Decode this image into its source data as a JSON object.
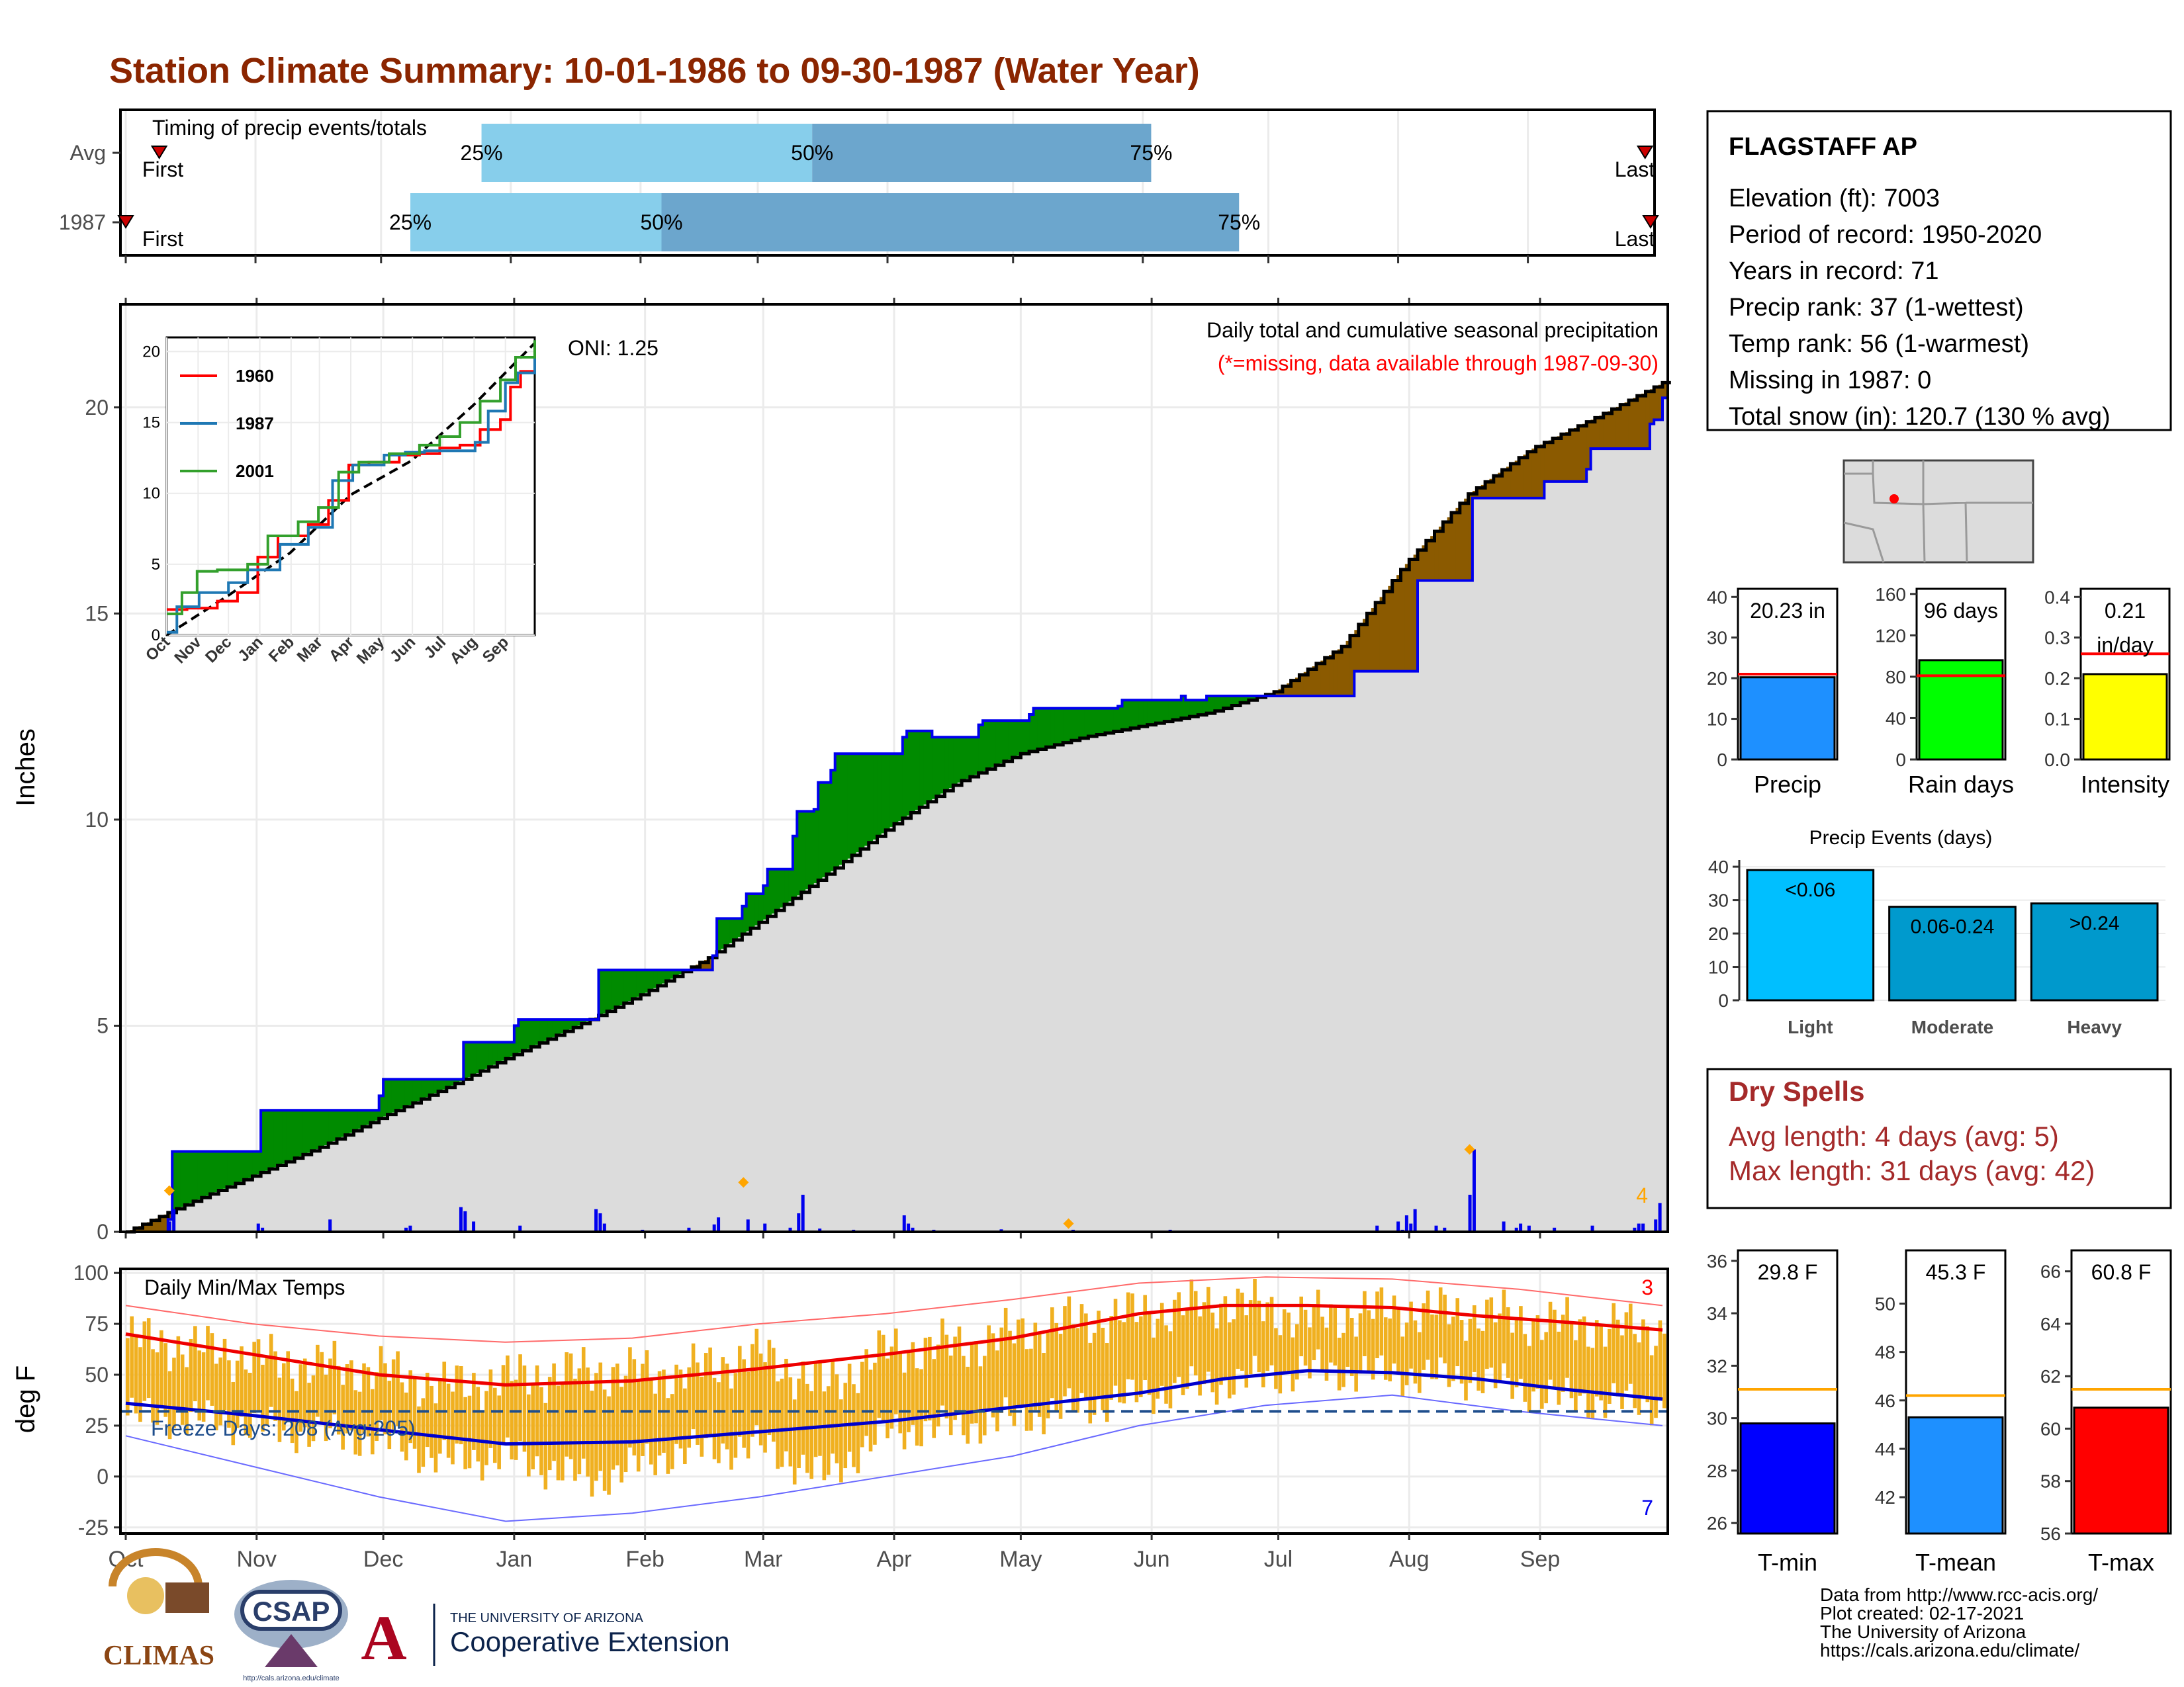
{
  "title": "Station Climate Summary: 10-01-1986 to 09-30-1987 (Water Year)",
  "colors": {
    "title": "#8B2500",
    "light": "#87CEEB",
    "mid": "#6CA6CD",
    "green": "#008B00",
    "brown": "#8B5A00",
    "gray": "#DCDCDC",
    "blue": "#0000EE",
    "orange": "#FFA500",
    "dryred": "#A52A2A"
  },
  "timing": {
    "label": "Timing of precip events/totals",
    "rows": [
      {
        "name": "Avg",
        "first_label": "First",
        "last_label": "Last",
        "first_day": 8,
        "last_day": 363,
        "q25_day": 85,
        "q50_day": 164,
        "q75_day": 245
      },
      {
        "name": "1987",
        "first_label": "First",
        "last_label": "Last",
        "first_day": 0,
        "last_day": 367,
        "q25_day": 68,
        "q50_day": 128,
        "q75_day": 266
      }
    ],
    "q_labels": [
      "25%",
      "50%",
      "75%"
    ]
  },
  "months": [
    "Oct",
    "Nov",
    "Dec",
    "Jan",
    "Feb",
    "Mar",
    "Apr",
    "May",
    "Jun",
    "Jul",
    "Aug",
    "Sep"
  ],
  "chart_data": [
    {
      "id": "main-precip",
      "type": "area",
      "title": "Daily total and cumulative seasonal precipitation",
      "subtitle": "(*=missing, data available through 1987-09-30)",
      "ylabel": "Inches",
      "ylim": [
        0,
        22.5
      ],
      "yticks": [
        0,
        5,
        10,
        15,
        20
      ],
      "oni_label": "ONI: 1.25",
      "corner_label": "4",
      "avg_cumulative": {
        "x": [
          0,
          15,
          30,
          46,
          61,
          77,
          92,
          108,
          123,
          138,
          152,
          167,
          182,
          197,
          212,
          227,
          242,
          257,
          272,
          288,
          303,
          318,
          333,
          349,
          364
        ],
        "y": [
          0,
          0.7,
          1.35,
          2.05,
          2.8,
          3.55,
          4.3,
          5.05,
          5.8,
          6.65,
          7.65,
          8.75,
          9.9,
          10.9,
          11.6,
          12.0,
          12.3,
          12.6,
          13.1,
          14.2,
          16.2,
          17.9,
          19.0,
          19.8,
          20.6
        ]
      },
      "observed_cumulative": {
        "x": [
          0,
          10,
          11,
          31,
          32,
          60,
          61,
          79,
          80,
          92,
          93,
          111,
          112,
          139,
          140,
          146,
          147,
          151,
          152,
          158,
          159,
          163,
          164,
          167,
          168,
          184,
          185,
          190,
          191,
          202,
          203,
          214,
          215,
          235,
          236,
          250,
          251,
          255,
          256,
          276,
          277,
          290,
          291,
          305,
          306,
          318,
          319,
          335,
          336,
          346,
          347,
          361,
          362,
          364
        ],
        "y": [
          0,
          0.3,
          1.95,
          1.95,
          2.95,
          3.3,
          3.7,
          3.7,
          4.6,
          5.0,
          5.15,
          5.15,
          6.35,
          6.7,
          7.6,
          7.9,
          8.2,
          8.4,
          8.8,
          9.6,
          10.2,
          10.25,
          10.9,
          11.2,
          11.6,
          12.0,
          12.15,
          12.15,
          12.0,
          12.3,
          12.4,
          12.55,
          12.7,
          12.75,
          12.9,
          13.0,
          12.9,
          12.9,
          13.0,
          13.0,
          13.0,
          13.0,
          13.6,
          13.6,
          15.8,
          15.8,
          17.8,
          17.8,
          18.2,
          18.5,
          19.0,
          19.6,
          19.7,
          20.23
        ]
      },
      "daily_bars": [
        [
          10,
          0.25
        ],
        [
          11,
          0.55
        ],
        [
          31,
          0.2
        ],
        [
          32,
          0.1
        ],
        [
          48,
          0.3
        ],
        [
          66,
          0.1
        ],
        [
          67,
          0.15
        ],
        [
          79,
          0.6
        ],
        [
          80,
          0.5
        ],
        [
          82,
          0.25
        ],
        [
          93,
          0.15
        ],
        [
          111,
          0.55
        ],
        [
          112,
          0.45
        ],
        [
          113,
          0.2
        ],
        [
          122,
          0.05
        ],
        [
          133,
          0.1
        ],
        [
          139,
          0.18
        ],
        [
          140,
          0.35
        ],
        [
          147,
          0.3
        ],
        [
          151,
          0.2
        ],
        [
          157,
          0.1
        ],
        [
          159,
          0.45
        ],
        [
          160,
          0.9
        ],
        [
          164,
          0.08
        ],
        [
          172,
          0.05
        ],
        [
          184,
          0.4
        ],
        [
          185,
          0.2
        ],
        [
          186,
          0.1
        ],
        [
          191,
          0.05
        ],
        [
          207,
          0.06
        ],
        [
          224,
          0.05
        ],
        [
          247,
          0.05
        ],
        [
          296,
          0.15
        ],
        [
          301,
          0.25
        ],
        [
          302,
          0.05
        ],
        [
          303,
          0.4
        ],
        [
          304,
          0.2
        ],
        [
          305,
          0.55
        ],
        [
          310,
          0.15
        ],
        [
          312,
          0.1
        ],
        [
          318,
          0.9
        ],
        [
          319,
          2.0
        ],
        [
          326,
          0.25
        ],
        [
          329,
          0.1
        ],
        [
          330,
          0.2
        ],
        [
          332,
          0.15
        ],
        [
          338,
          0.1
        ],
        [
          347,
          0.15
        ],
        [
          357,
          0.1
        ],
        [
          358,
          0.2
        ],
        [
          359,
          0.2
        ],
        [
          362,
          0.3
        ],
        [
          363,
          0.7
        ]
      ],
      "record_markers": [
        [
          10,
          1.0
        ],
        [
          146,
          1.2
        ],
        [
          223,
          0.2
        ],
        [
          318,
          2.0
        ]
      ]
    },
    {
      "id": "inset-cumulative",
      "type": "line",
      "yticks": [
        0,
        5,
        10,
        15,
        20
      ],
      "ylim": [
        0,
        21
      ],
      "xticks": [
        "Oct",
        "Nov",
        "Dec",
        "Jan",
        "Feb",
        "Mar",
        "Apr",
        "May",
        "Jun",
        "Jul",
        "Aug",
        "Sep"
      ],
      "series": [
        {
          "name": "1960",
          "color": "#FF0000",
          "x": [
            0,
            20,
            50,
            70,
            90,
            110,
            140,
            160,
            180,
            200,
            230,
            250,
            270,
            290,
            310,
            330,
            340,
            350,
            364
          ],
          "y": [
            1.8,
            1.9,
            2.4,
            3.0,
            5.5,
            7.0,
            7.8,
            9.5,
            12.0,
            12.2,
            12.7,
            12.8,
            13.2,
            13.4,
            14.5,
            15.2,
            17.5,
            18.6,
            18.7
          ]
        },
        {
          "name": "1987",
          "color": "#1F78B4",
          "x": [
            0,
            10,
            31,
            32,
            61,
            80,
            112,
            140,
            164,
            184,
            215,
            236,
            255,
            290,
            305,
            318,
            335,
            347,
            364
          ],
          "y": [
            0.2,
            2.0,
            2.0,
            3.0,
            3.7,
            4.6,
            6.4,
            7.6,
            10.9,
            12.0,
            12.7,
            12.9,
            13.0,
            13.0,
            13.6,
            15.8,
            17.8,
            18.5,
            20.2
          ]
        },
        {
          "name": "2001",
          "color": "#33A02C",
          "x": [
            0,
            15,
            30,
            50,
            80,
            100,
            130,
            150,
            170,
            190,
            220,
            250,
            270,
            290,
            310,
            330,
            345,
            364
          ],
          "y": [
            1.5,
            3.0,
            4.5,
            4.6,
            5.0,
            7.0,
            8.0,
            9.0,
            11.5,
            12.2,
            12.8,
            13.4,
            14.0,
            15.0,
            16.5,
            18.0,
            19.6,
            20.8
          ]
        }
      ],
      "avg_line": {
        "x": [
          0,
          61,
          122,
          182,
          242,
          303,
          364
        ],
        "y": [
          0,
          2.8,
          5.8,
          9.9,
          12.3,
          16.2,
          20.6
        ]
      }
    },
    {
      "id": "temps",
      "type": "line",
      "label": "Daily Min/Max Temps",
      "ylabel": "deg F",
      "ylim": [
        -28,
        102
      ],
      "yticks": [
        -25,
        0,
        25,
        50,
        75,
        100
      ],
      "freeze_label": "Freeze Days: 208 (Avg:205)",
      "freeze_line": 32,
      "max_count_label": "3",
      "min_count_label": "7",
      "avg_max": {
        "x": [
          0,
          30,
          60,
          90,
          120,
          150,
          180,
          210,
          240,
          260,
          280,
          300,
          320,
          340,
          364
        ],
        "y": [
          70,
          60,
          50,
          45,
          47,
          53,
          60,
          68,
          80,
          84,
          84,
          83,
          79,
          76,
          72
        ]
      },
      "avg_min": {
        "x": [
          0,
          30,
          60,
          90,
          120,
          150,
          180,
          210,
          240,
          260,
          280,
          300,
          320,
          340,
          364
        ],
        "y": [
          36,
          30,
          23,
          16,
          17,
          22,
          27,
          34,
          41,
          48,
          52,
          51,
          48,
          43,
          38
        ]
      },
      "rec_max": {
        "x": [
          0,
          30,
          60,
          90,
          120,
          150,
          180,
          210,
          240,
          270,
          300,
          330,
          364
        ],
        "y": [
          84,
          75,
          69,
          66,
          68,
          75,
          80,
          87,
          95,
          98,
          97,
          92,
          84
        ]
      },
      "rec_min": {
        "x": [
          0,
          30,
          60,
          90,
          120,
          150,
          180,
          210,
          240,
          270,
          300,
          330,
          364
        ],
        "y": [
          20,
          5,
          -10,
          -22,
          -18,
          -10,
          0,
          10,
          25,
          35,
          40,
          32,
          25
        ]
      },
      "obs_max": {
        "x": [
          0,
          20,
          40,
          60,
          75,
          90,
          110,
          130,
          150,
          165,
          180,
          200,
          220,
          240,
          260,
          280,
          300,
          320,
          340,
          364
        ],
        "y": [
          68,
          62,
          55,
          52,
          44,
          48,
          52,
          50,
          60,
          44,
          62,
          65,
          75,
          80,
          86,
          78,
          82,
          80,
          75,
          72
        ]
      },
      "obs_min": {
        "x": [
          0,
          20,
          40,
          60,
          75,
          90,
          110,
          130,
          150,
          165,
          180,
          200,
          220,
          240,
          260,
          280,
          300,
          320,
          340,
          364
        ],
        "y": [
          30,
          28,
          22,
          18,
          8,
          10,
          -2,
          12,
          15,
          0,
          22,
          25,
          32,
          40,
          46,
          52,
          50,
          48,
          38,
          35
        ]
      }
    },
    {
      "id": "precip-total",
      "type": "bar",
      "label": "Precip",
      "value": 20.23,
      "value_label": "20.23 in",
      "avg": 21,
      "ylim": [
        0,
        42
      ],
      "yticks": [
        0,
        10,
        20,
        30,
        40
      ],
      "color": "#1E90FF"
    },
    {
      "id": "rain-days",
      "type": "bar",
      "label": "Rain days",
      "value": 96,
      "value_label": "96 days",
      "avg": 81,
      "ylim": [
        0,
        165
      ],
      "yticks": [
        0,
        40,
        80,
        120,
        160
      ],
      "color": "#00FF00"
    },
    {
      "id": "intensity",
      "type": "bar",
      "label": "Intensity",
      "value": 0.21,
      "value_label": "0.21",
      "value_label2": "in/day",
      "avg": 0.26,
      "ylim": [
        0,
        0.42
      ],
      "yticks": [
        0.0,
        0.1,
        0.2,
        0.3,
        0.4
      ],
      "color": "#FFFF00"
    },
    {
      "id": "precip-events",
      "type": "bar",
      "title": "Precip Events (days)",
      "categories": [
        "Light",
        "Moderate",
        "Heavy"
      ],
      "labels": [
        "<0.06",
        "0.06-0.24",
        ">0.24"
      ],
      "values": [
        39,
        28,
        29
      ],
      "ylim": [
        0,
        42
      ],
      "yticks": [
        0,
        10,
        20,
        30,
        40
      ],
      "colors": [
        "#00BFFF",
        "#009ACD",
        "#0099CC"
      ]
    },
    {
      "id": "t-min",
      "type": "bar",
      "label": "T-min",
      "value": 29.8,
      "value_label": "29.8 F",
      "avg": 31.1,
      "ylim": [
        25.6,
        36.4
      ],
      "yticks": [
        26,
        28,
        30,
        32,
        34,
        36
      ],
      "color": "#0000FF"
    },
    {
      "id": "t-mean",
      "type": "bar",
      "label": "T-mean",
      "value": 45.3,
      "value_label": "45.3 F",
      "avg": 46.2,
      "ylim": [
        40.5,
        52.2
      ],
      "yticks": [
        42,
        44,
        46,
        48,
        50
      ],
      "color": "#1E90FF"
    },
    {
      "id": "t-max",
      "type": "bar",
      "label": "T-max",
      "value": 60.8,
      "value_label": "60.8 F",
      "avg": 61.5,
      "ylim": [
        56,
        66.8
      ],
      "yticks": [
        56,
        58,
        60,
        62,
        64,
        66
      ],
      "color": "#FF0000"
    }
  ],
  "station": {
    "name": "FLAGSTAFF AP",
    "lines": [
      "Elevation (ft): 7003",
      "Period of record: 1950-2020",
      "Years in record: 71",
      "Precip rank: 37 (1-wettest)",
      "Temp rank: 56 (1-warmest)",
      "Missing in 1987: 0",
      "Total snow (in): 120.7 (130 % avg)"
    ]
  },
  "dry_spells": {
    "title": "Dry Spells",
    "avg": "Avg length: 4 days (avg: 5)",
    "max": "Max length: 31 days (avg: 42)"
  },
  "footer": [
    "Data from http://www.rcc-acis.org/",
    "Plot created: 02-17-2021",
    "The University of Arizona",
    "https://cals.arizona.edu/climate/"
  ],
  "logos": {
    "climas": "CLIMAS",
    "csap": "CSAP",
    "csap_url": "http://cals.arizona.edu/climate",
    "ua_small": "THE UNIVERSITY OF ARIZONA",
    "ua_big": "Cooperative Extension"
  }
}
